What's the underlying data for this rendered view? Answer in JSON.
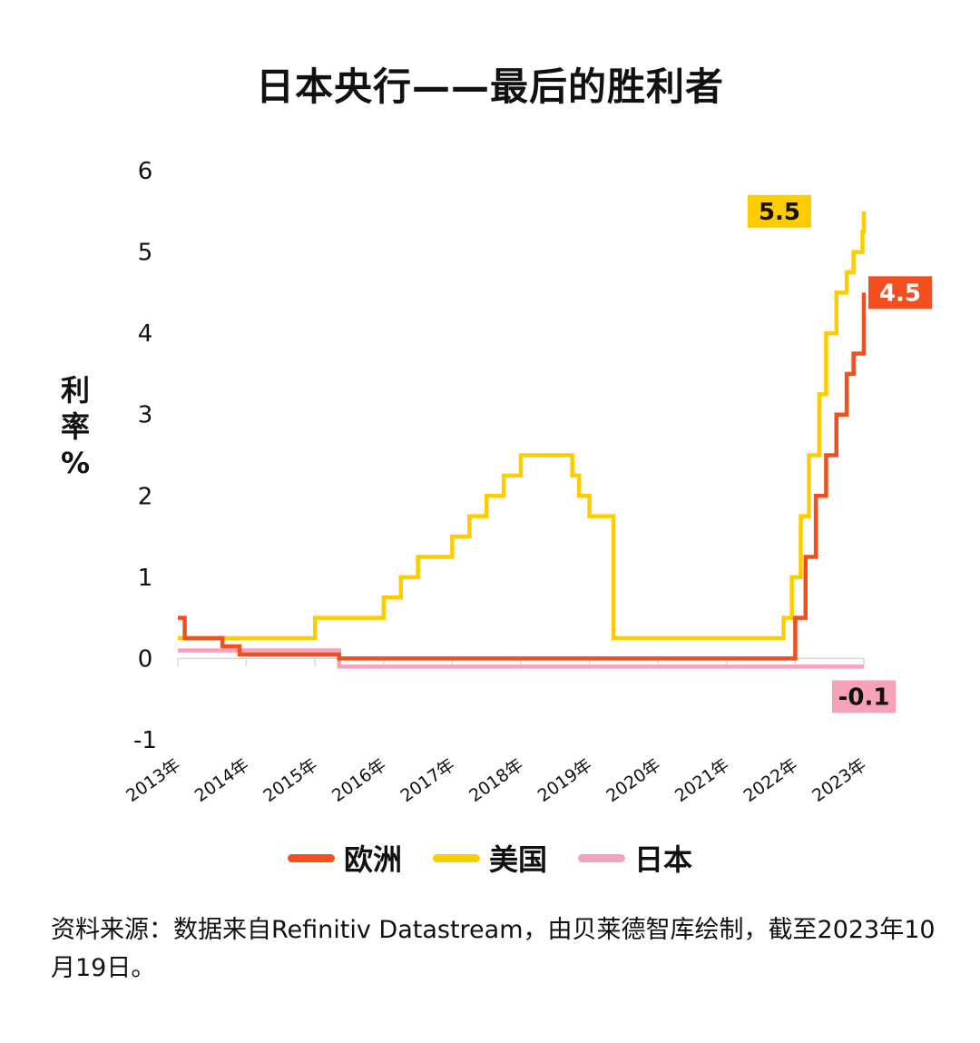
{
  "chart_data": {
    "type": "line",
    "title": "日本央行——最后的胜利者",
    "ylabel": [
      "利",
      "率",
      "%"
    ],
    "ylim": [
      -1,
      6
    ],
    "yticks": [
      "6",
      "5",
      "4",
      "3",
      "2",
      "1",
      "0",
      "-1"
    ],
    "ytick_values": [
      6,
      5,
      4,
      3,
      2,
      1,
      0,
      -1
    ],
    "xlim": [
      2013.0,
      2023.0
    ],
    "xticks": [
      "2013年",
      "2014年",
      "2015年",
      "2016年",
      "2017年",
      "2018年",
      "2019年",
      "2020年",
      "2021年",
      "2022年",
      "2023年"
    ],
    "xtick_values": [
      2013,
      2014,
      2015,
      2016,
      2017,
      2018,
      2019,
      2020,
      2021,
      2022,
      2023
    ],
    "step": true,
    "series": [
      {
        "name": "美国",
        "color": "#FFCC00",
        "x": [
          2013.0,
          2015.0,
          2016.0,
          2016.25,
          2016.5,
          2017.0,
          2017.25,
          2017.5,
          2017.75,
          2018.0,
          2018.25,
          2018.75,
          2018.85,
          2019.0,
          2019.35,
          2021.83,
          2021.95,
          2022.08,
          2022.2,
          2022.35,
          2022.45,
          2022.6,
          2022.75,
          2022.85,
          2022.98,
          2023.2,
          2023.0
        ],
        "y": [
          0.25,
          0.5,
          0.75,
          1.0,
          1.25,
          1.5,
          1.75,
          2.0,
          2.25,
          2.5,
          2.5,
          2.25,
          2.0,
          1.75,
          0.25,
          0.5,
          1.0,
          1.75,
          2.5,
          3.25,
          4.0,
          4.5,
          4.75,
          5.0,
          5.25,
          5.5,
          5.5
        ]
      },
      {
        "name": "欧洲",
        "color": "#F24E1E",
        "x": [
          2013.0,
          2013.1,
          2013.65,
          2013.9,
          2015.35,
          2021.85,
          2022.0,
          2022.15,
          2022.3,
          2022.45,
          2022.6,
          2022.75,
          2022.85,
          2023.0
        ],
        "y": [
          0.5,
          0.25,
          0.15,
          0.05,
          0.0,
          0.0,
          0.5,
          1.25,
          2.0,
          2.5,
          3.0,
          3.5,
          3.75,
          4.5
        ]
      },
      {
        "name": "日本",
        "color": "#F7A1BA",
        "x": [
          2013.0,
          2015.35,
          2023.0
        ],
        "y": [
          0.1,
          -0.1,
          -0.1
        ]
      }
    ],
    "end_labels": [
      {
        "series": "美国",
        "text": "5.5",
        "bg": "#FFCC00",
        "fg": "#111111"
      },
      {
        "series": "欧洲",
        "text": "4.5",
        "bg": "#F24E1E",
        "fg": "#ffffff"
      },
      {
        "series": "日本",
        "text": "-0.1",
        "bg": "#F7A1BA",
        "fg": "#111111"
      }
    ]
  },
  "legend": [
    {
      "label": "欧洲",
      "color": "#F24E1E"
    },
    {
      "label": "美国",
      "color": "#FFCC00"
    },
    {
      "label": "日本",
      "color": "#F7A1BA"
    }
  ],
  "source": "资料来源：数据来自Refinitiv Datastream，由贝莱德智库绘制，截至2023年10月19日。"
}
